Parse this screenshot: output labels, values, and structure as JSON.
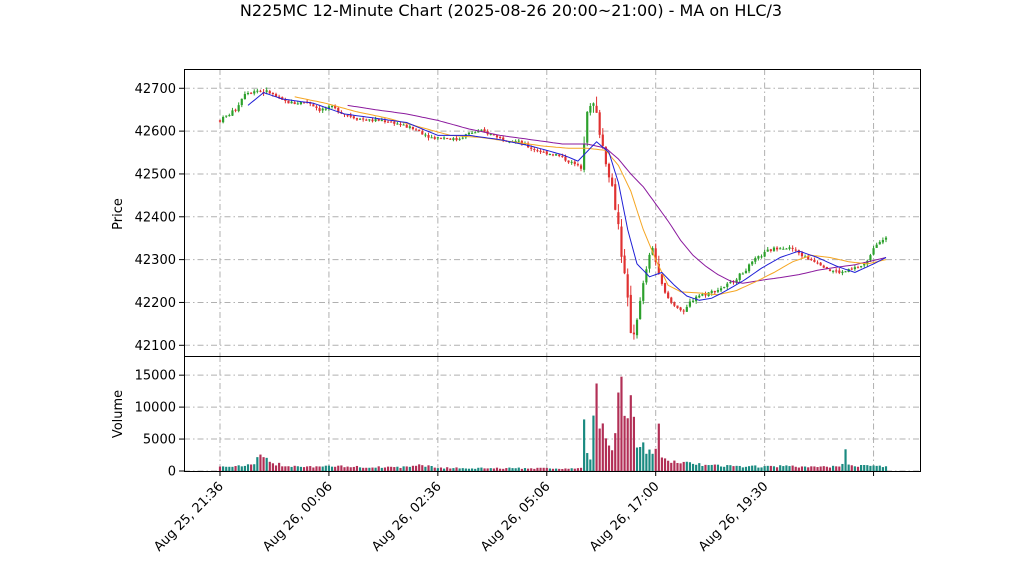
{
  "chart_data": {
    "type": "candlestick",
    "title": "N225MC 12-Minute Chart (2025-08-26 20:00~21:00) - MA on HLC/3",
    "price_panel": {
      "ylabel": "Price",
      "yticks": [
        42100,
        42200,
        42300,
        42400,
        42500,
        42600,
        42700
      ],
      "ylim": [
        42075,
        42745
      ]
    },
    "volume_panel": {
      "ylabel": "Volume",
      "yticks": [
        0,
        5000,
        10000,
        15000
      ],
      "ylim": [
        0,
        18000
      ]
    },
    "xticks": [
      "Aug 25, 21:36",
      "Aug 26, 00:06",
      "Aug 26, 02:36",
      "Aug 26, 05:06",
      "Aug 26, 17:00",
      "Aug 26, 19:30"
    ],
    "grid": true,
    "colors": {
      "up": "#2ca02c",
      "down": "#e03131",
      "ma_short": "#1f1fd6",
      "ma_mid": "#f5a623",
      "ma_long": "#8b1a9e",
      "vol_up": "#1a8a80",
      "vol_down": "#b22f56"
    },
    "price_anchors": [
      [
        0,
        42625
      ],
      [
        2,
        42635
      ],
      [
        5,
        42650
      ],
      [
        8,
        42690
      ],
      [
        12,
        42695
      ],
      [
        16,
        42690
      ],
      [
        20,
        42670
      ],
      [
        24,
        42665
      ],
      [
        28,
        42670
      ],
      [
        32,
        42650
      ],
      [
        36,
        42655
      ],
      [
        40,
        42640
      ],
      [
        44,
        42630
      ],
      [
        48,
        42625
      ],
      [
        52,
        42625
      ],
      [
        56,
        42620
      ],
      [
        60,
        42610
      ],
      [
        64,
        42600
      ],
      [
        68,
        42585
      ],
      [
        72,
        42585
      ],
      [
        76,
        42580
      ],
      [
        80,
        42595
      ],
      [
        84,
        42600
      ],
      [
        88,
        42590
      ],
      [
        92,
        42580
      ],
      [
        96,
        42575
      ],
      [
        100,
        42560
      ],
      [
        104,
        42550
      ],
      [
        108,
        42545
      ],
      [
        112,
        42530
      ],
      [
        116,
        42515
      ],
      [
        118,
        42650
      ],
      [
        120,
        42660
      ],
      [
        122,
        42600
      ],
      [
        124,
        42530
      ],
      [
        126,
        42470
      ],
      [
        128,
        42380
      ],
      [
        130,
        42260
      ],
      [
        132,
        42140
      ],
      [
        133,
        42130
      ],
      [
        135,
        42200
      ],
      [
        137,
        42280
      ],
      [
        139,
        42330
      ],
      [
        141,
        42260
      ],
      [
        143,
        42220
      ],
      [
        145,
        42200
      ],
      [
        147,
        42190
      ],
      [
        149,
        42175
      ],
      [
        151,
        42200
      ],
      [
        153,
        42215
      ],
      [
        156,
        42220
      ],
      [
        160,
        42230
      ],
      [
        164,
        42245
      ],
      [
        168,
        42270
      ],
      [
        172,
        42300
      ],
      [
        176,
        42320
      ],
      [
        180,
        42330
      ],
      [
        184,
        42325
      ],
      [
        188,
        42305
      ],
      [
        192,
        42295
      ],
      [
        196,
        42275
      ],
      [
        200,
        42270
      ],
      [
        204,
        42280
      ],
      [
        206,
        42285
      ],
      [
        208,
        42295
      ],
      [
        210,
        42330
      ],
      [
        212,
        42345
      ],
      [
        214,
        42350
      ]
    ],
    "ma_short_anchors": [
      [
        9,
        42660
      ],
      [
        14,
        42690
      ],
      [
        20,
        42675
      ],
      [
        30,
        42665
      ],
      [
        40,
        42640
      ],
      [
        50,
        42630
      ],
      [
        60,
        42620
      ],
      [
        70,
        42590
      ],
      [
        80,
        42590
      ],
      [
        90,
        42580
      ],
      [
        100,
        42565
      ],
      [
        110,
        42545
      ],
      [
        115,
        42530
      ],
      [
        121,
        42575
      ],
      [
        125,
        42550
      ],
      [
        128,
        42480
      ],
      [
        131,
        42370
      ],
      [
        134,
        42290
      ],
      [
        138,
        42260
      ],
      [
        142,
        42270
      ],
      [
        146,
        42240
      ],
      [
        150,
        42215
      ],
      [
        154,
        42205
      ],
      [
        158,
        42210
      ],
      [
        162,
        42225
      ],
      [
        168,
        42250
      ],
      [
        174,
        42280
      ],
      [
        180,
        42305
      ],
      [
        186,
        42320
      ],
      [
        192,
        42305
      ],
      [
        198,
        42285
      ],
      [
        204,
        42270
      ],
      [
        210,
        42290
      ],
      [
        214,
        42305
      ]
    ],
    "ma_mid_anchors": [
      [
        24,
        42680
      ],
      [
        34,
        42665
      ],
      [
        44,
        42645
      ],
      [
        54,
        42630
      ],
      [
        64,
        42610
      ],
      [
        74,
        42590
      ],
      [
        84,
        42585
      ],
      [
        94,
        42575
      ],
      [
        104,
        42565
      ],
      [
        112,
        42560
      ],
      [
        118,
        42560
      ],
      [
        124,
        42555
      ],
      [
        128,
        42520
      ],
      [
        132,
        42460
      ],
      [
        136,
        42370
      ],
      [
        140,
        42300
      ],
      [
        144,
        42240
      ],
      [
        148,
        42225
      ],
      [
        154,
        42222
      ],
      [
        160,
        42218
      ],
      [
        166,
        42228
      ],
      [
        172,
        42248
      ],
      [
        178,
        42270
      ],
      [
        184,
        42295
      ],
      [
        190,
        42310
      ],
      [
        196,
        42305
      ],
      [
        202,
        42295
      ],
      [
        208,
        42290
      ],
      [
        214,
        42300
      ]
    ],
    "ma_long_anchors": [
      [
        41,
        42660
      ],
      [
        50,
        42650
      ],
      [
        60,
        42640
      ],
      [
        70,
        42625
      ],
      [
        80,
        42605
      ],
      [
        90,
        42590
      ],
      [
        100,
        42580
      ],
      [
        110,
        42570
      ],
      [
        118,
        42570
      ],
      [
        124,
        42560
      ],
      [
        128,
        42535
      ],
      [
        132,
        42500
      ],
      [
        136,
        42470
      ],
      [
        140,
        42430
      ],
      [
        144,
        42390
      ],
      [
        148,
        42345
      ],
      [
        152,
        42310
      ],
      [
        156,
        42285
      ],
      [
        160,
        42265
      ],
      [
        164,
        42250
      ],
      [
        168,
        42245
      ],
      [
        174,
        42252
      ],
      [
        180,
        42258
      ],
      [
        186,
        42265
      ],
      [
        192,
        42275
      ],
      [
        198,
        42282
      ],
      [
        204,
        42288
      ],
      [
        210,
        42298
      ],
      [
        214,
        42305
      ]
    ],
    "volume_anchors": [
      [
        0,
        700
      ],
      [
        10,
        900
      ],
      [
        13,
        2200
      ],
      [
        16,
        1400
      ],
      [
        20,
        900
      ],
      [
        30,
        700
      ],
      [
        40,
        700
      ],
      [
        50,
        600
      ],
      [
        60,
        600
      ],
      [
        64,
        1000
      ],
      [
        70,
        500
      ],
      [
        80,
        450
      ],
      [
        90,
        420
      ],
      [
        100,
        450
      ],
      [
        110,
        400
      ],
      [
        116,
        400
      ],
      [
        117,
        6500
      ],
      [
        118,
        2600
      ],
      [
        119,
        2200
      ],
      [
        120,
        8800
      ],
      [
        121,
        16500
      ],
      [
        122,
        7800
      ],
      [
        123,
        6200
      ],
      [
        124,
        5700
      ],
      [
        125,
        4500
      ],
      [
        126,
        3500
      ],
      [
        127,
        7200
      ],
      [
        128,
        12800
      ],
      [
        129,
        12200
      ],
      [
        130,
        7500
      ],
      [
        131,
        7400
      ],
      [
        132,
        10900
      ],
      [
        133,
        9200
      ],
      [
        134,
        4100
      ],
      [
        135,
        3400
      ],
      [
        136,
        3800
      ],
      [
        137,
        3200
      ],
      [
        138,
        4200
      ],
      [
        139,
        2800
      ],
      [
        140,
        3500
      ],
      [
        141,
        6100
      ],
      [
        142,
        2600
      ],
      [
        144,
        1800
      ],
      [
        146,
        1500
      ],
      [
        150,
        1200
      ],
      [
        156,
        900
      ],
      [
        162,
        800
      ],
      [
        170,
        700
      ],
      [
        176,
        700
      ],
      [
        180,
        750
      ],
      [
        190,
        600
      ],
      [
        198,
        700
      ],
      [
        200,
        900
      ],
      [
        201,
        3000
      ],
      [
        202,
        1200
      ],
      [
        204,
        900
      ],
      [
        208,
        800
      ],
      [
        214,
        700
      ]
    ]
  }
}
